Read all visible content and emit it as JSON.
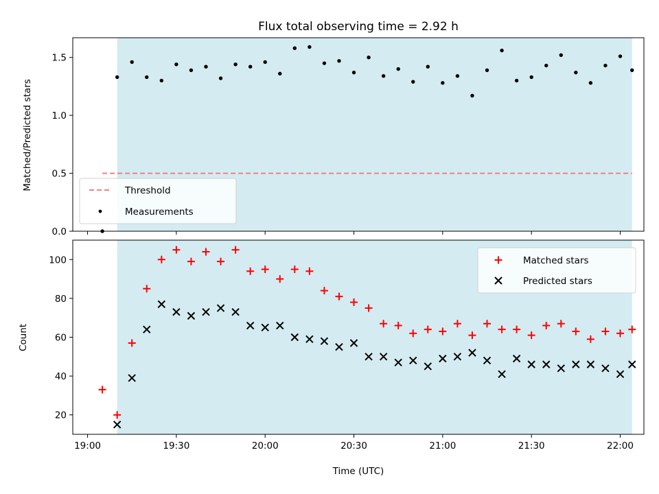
{
  "chart_data": [
    {
      "type": "scatter",
      "title": "Flux total observing time = 2.92 h",
      "xlabel": "",
      "ylabel": "Matched/Predicted stars",
      "xlim": [
        "18:55",
        "22:08"
      ],
      "ylim": [
        0,
        1.67
      ],
      "x_ticks": [
        "19:00",
        "19:30",
        "20:00",
        "20:30",
        "21:00",
        "21:30",
        "22:00"
      ],
      "y_ticks": [
        "0.0",
        "0.5",
        "1.0",
        "1.5"
      ],
      "shaded_span": [
        "19:10",
        "22:04"
      ],
      "threshold": {
        "name": "Threshold",
        "value": 0.5,
        "x_range": [
          "19:05",
          "22:04"
        ],
        "color": "#f08080"
      },
      "legend": {
        "placement": "lower-left",
        "entries": [
          "Threshold",
          "Measurements"
        ]
      },
      "series": [
        {
          "name": "Measurements",
          "color": "#000000",
          "marker": "dot",
          "x": [
            "19:05",
            "19:10",
            "19:15",
            "19:20",
            "19:25",
            "19:30",
            "19:35",
            "19:40",
            "19:45",
            "19:50",
            "19:55",
            "20:00",
            "20:05",
            "20:10",
            "20:15",
            "20:20",
            "20:25",
            "20:30",
            "20:35",
            "20:40",
            "20:45",
            "20:50",
            "20:55",
            "21:00",
            "21:05",
            "21:10",
            "21:15",
            "21:20",
            "21:25",
            "21:30",
            "21:35",
            "21:40",
            "21:45",
            "21:50",
            "21:55",
            "22:00",
            "22:04"
          ],
          "y": [
            0.0,
            1.33,
            1.46,
            1.33,
            1.3,
            1.44,
            1.39,
            1.42,
            1.32,
            1.44,
            1.42,
            1.46,
            1.36,
            1.58,
            1.59,
            1.45,
            1.47,
            1.37,
            1.5,
            1.34,
            1.4,
            1.29,
            1.42,
            1.28,
            1.34,
            1.17,
            1.39,
            1.56,
            1.3,
            1.33,
            1.43,
            1.52,
            1.37,
            1.28,
            1.43,
            1.51,
            1.39
          ]
        }
      ]
    },
    {
      "type": "scatter",
      "title": "",
      "xlabel": "Time (UTC)",
      "ylabel": "Count",
      "xlim": [
        "18:55",
        "22:08"
      ],
      "ylim": [
        10,
        110
      ],
      "x_ticks": [
        "19:00",
        "19:30",
        "20:00",
        "20:30",
        "21:00",
        "21:30",
        "22:00"
      ],
      "y_ticks": [
        "20",
        "40",
        "60",
        "80",
        "100"
      ],
      "shaded_span": [
        "19:10",
        "22:04"
      ],
      "legend": {
        "placement": "upper-right",
        "entries": [
          "Matched stars",
          "Predicted stars"
        ]
      },
      "series": [
        {
          "name": "Matched stars",
          "color": "#ff0000",
          "marker": "plus",
          "x": [
            "19:05",
            "19:10",
            "19:15",
            "19:20",
            "19:25",
            "19:30",
            "19:35",
            "19:40",
            "19:45",
            "19:50",
            "19:55",
            "20:00",
            "20:05",
            "20:10",
            "20:15",
            "20:20",
            "20:25",
            "20:30",
            "20:35",
            "20:40",
            "20:45",
            "20:50",
            "20:55",
            "21:00",
            "21:05",
            "21:10",
            "21:15",
            "21:20",
            "21:25",
            "21:30",
            "21:35",
            "21:40",
            "21:45",
            "21:50",
            "21:55",
            "22:00",
            "22:04"
          ],
          "y": [
            33,
            20,
            57,
            85,
            100,
            105,
            99,
            104,
            99,
            105,
            94,
            95,
            90,
            95,
            94,
            84,
            81,
            78,
            75,
            67,
            66,
            62,
            64,
            63,
            67,
            61,
            67,
            64,
            64,
            61,
            66,
            67,
            63,
            59,
            63,
            62,
            64
          ]
        },
        {
          "name": "Predicted stars",
          "color": "#000000",
          "marker": "x",
          "x": [
            "19:10",
            "19:15",
            "19:20",
            "19:25",
            "19:30",
            "19:35",
            "19:40",
            "19:45",
            "19:50",
            "19:55",
            "20:00",
            "20:05",
            "20:10",
            "20:15",
            "20:20",
            "20:25",
            "20:30",
            "20:35",
            "20:40",
            "20:45",
            "20:50",
            "20:55",
            "21:00",
            "21:05",
            "21:10",
            "21:15",
            "21:20",
            "21:25",
            "21:30",
            "21:35",
            "21:40",
            "21:45",
            "21:50",
            "21:55",
            "22:00",
            "22:04"
          ],
          "y": [
            15,
            39,
            64,
            77,
            73,
            71,
            73,
            75,
            73,
            66,
            65,
            66,
            60,
            59,
            58,
            55,
            57,
            50,
            50,
            47,
            48,
            45,
            49,
            50,
            52,
            48,
            41,
            49,
            46,
            46,
            44,
            46,
            46,
            44,
            41,
            46
          ]
        }
      ]
    }
  ]
}
